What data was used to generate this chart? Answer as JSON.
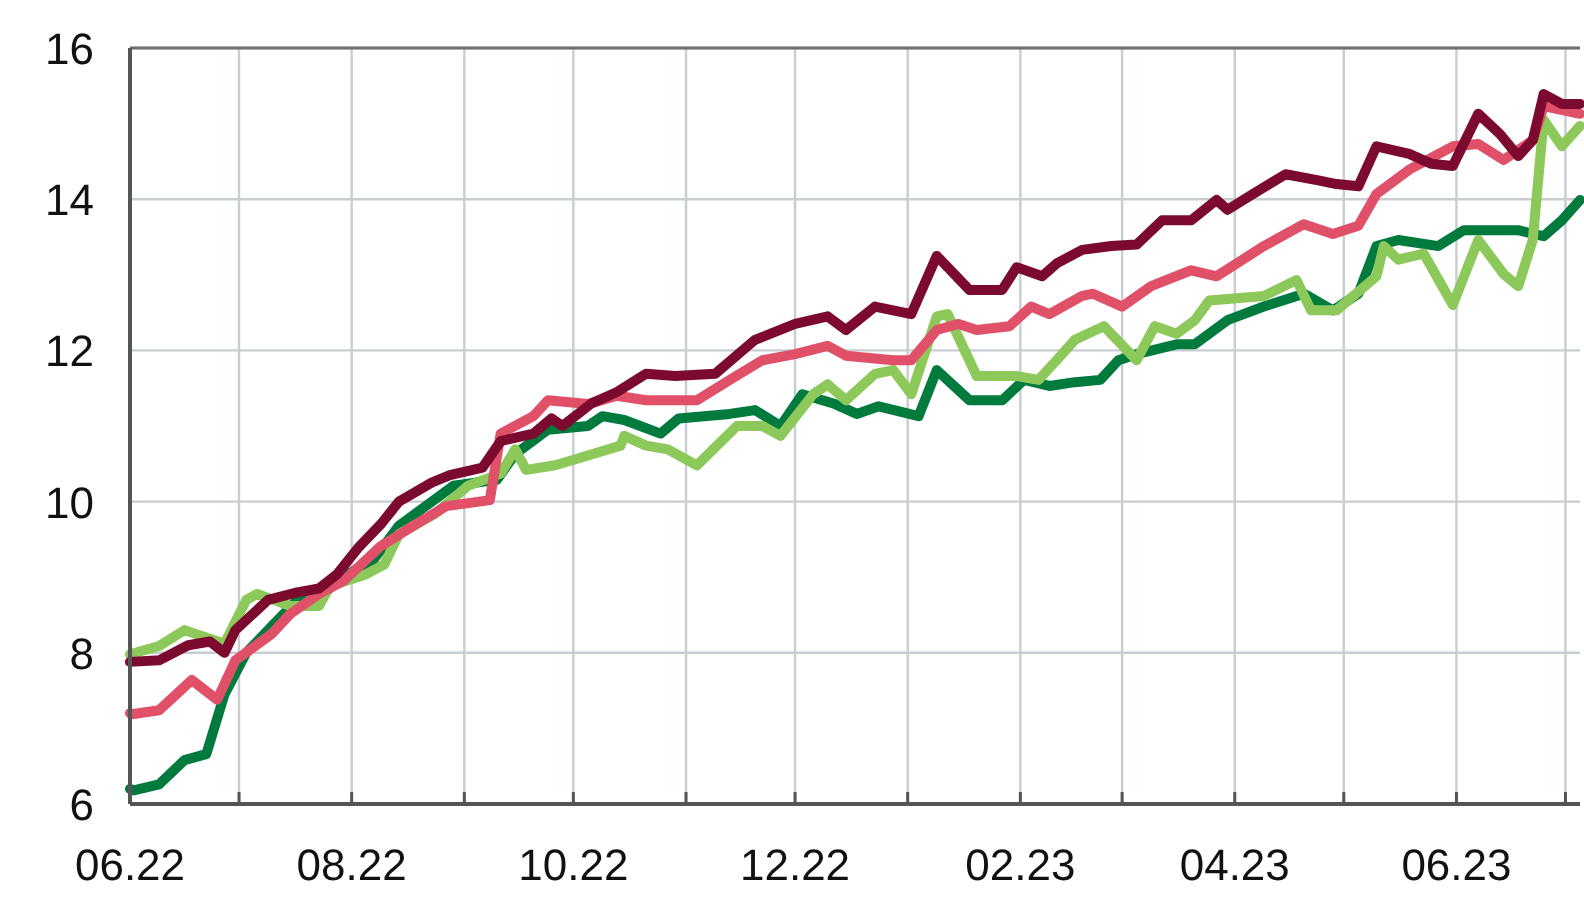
{
  "chart_data": {
    "type": "line",
    "xlim": [
      "2022-06-01",
      "2023-07-05"
    ],
    "ylim": [
      6,
      16
    ],
    "yticks": [
      6,
      8,
      10,
      12,
      14,
      16
    ],
    "xticks": [
      {
        "value": "2022-06",
        "label": "06.22"
      },
      {
        "value": "2022-07",
        "label": null
      },
      {
        "value": "2022-08",
        "label": "08.22"
      },
      {
        "value": "2022-09",
        "label": null
      },
      {
        "value": "2022-10",
        "label": "10.22"
      },
      {
        "value": "2022-11",
        "label": null
      },
      {
        "value": "2022-12",
        "label": "12.22"
      },
      {
        "value": "2023-01",
        "label": null
      },
      {
        "value": "2023-02",
        "label": "02.23"
      },
      {
        "value": "2023-03",
        "label": null
      },
      {
        "value": "2023-04",
        "label": "04.23"
      },
      {
        "value": "2023-05",
        "label": null
      },
      {
        "value": "2023-06",
        "label": "06.23"
      },
      {
        "value": "2023-07",
        "label": null
      }
    ],
    "grid": true,
    "line_style": "solid",
    "marker": "none",
    "series": [
      {
        "color": "#007a3d",
        "x": [
          "2022-06-01",
          "2022-06-02",
          "2022-06-09",
          "2022-06-16",
          "2022-06-22",
          "2022-06-27",
          "2022-07-03",
          "2022-07-10",
          "2022-07-17",
          "2022-07-23",
          "2022-07-28",
          "2022-08-07",
          "2022-08-14",
          "2022-08-29",
          "2022-09-10",
          "2022-09-15",
          "2022-09-24",
          "2022-10-05",
          "2022-10-09",
          "2022-10-15",
          "2022-10-25",
          "2022-10-30",
          "2022-11-13",
          "2022-11-20",
          "2022-11-27",
          "2022-12-03",
          "2022-12-12",
          "2022-12-18",
          "2022-12-24",
          "2023-01-04",
          "2023-01-09",
          "2023-01-18",
          "2023-01-27",
          "2023-02-02",
          "2023-02-09",
          "2023-02-16",
          "2023-02-23",
          "2023-02-28",
          "2023-03-05",
          "2023-03-16",
          "2023-03-21",
          "2023-03-30",
          "2023-04-09",
          "2023-04-20",
          "2023-04-28",
          "2023-05-05",
          "2023-05-10",
          "2023-05-16",
          "2023-05-27",
          "2023-06-03",
          "2023-06-18",
          "2023-06-25",
          "2023-06-30",
          "2023-07-05"
        ],
        "values": [
          6.2,
          6.18,
          6.26,
          6.58,
          6.66,
          7.45,
          8.0,
          8.35,
          8.7,
          8.7,
          8.96,
          9.23,
          9.68,
          10.21,
          10.29,
          10.63,
          10.95,
          11.0,
          11.13,
          11.08,
          10.9,
          11.1,
          11.16,
          11.21,
          11.0,
          11.42,
          11.29,
          11.16,
          11.26,
          11.13,
          11.74,
          11.34,
          11.34,
          11.61,
          11.53,
          11.58,
          11.61,
          11.87,
          11.95,
          12.08,
          12.08,
          12.4,
          12.58,
          12.75,
          12.53,
          12.75,
          13.38,
          13.46,
          13.38,
          13.59,
          13.59,
          13.51,
          13.72,
          13.99
        ]
      },
      {
        "color": "#8dc95a",
        "x": [
          "2022-06-01",
          "2022-06-09",
          "2022-06-16",
          "2022-06-24",
          "2022-06-27",
          "2022-07-03",
          "2022-07-06",
          "2022-07-15",
          "2022-07-23",
          "2022-07-26",
          "2022-08-05",
          "2022-08-10",
          "2022-08-14",
          "2022-08-24",
          "2022-09-02",
          "2022-09-11",
          "2022-09-15",
          "2022-09-18",
          "2022-09-26",
          "2022-10-05",
          "2022-10-14",
          "2022-10-15",
          "2022-10-21",
          "2022-10-27",
          "2022-11-04",
          "2022-11-15",
          "2022-11-22",
          "2022-11-27",
          "2022-12-06",
          "2022-12-10",
          "2022-12-15",
          "2022-12-23",
          "2022-12-28",
          "2023-01-02",
          "2023-01-09",
          "2023-01-12",
          "2023-01-20",
          "2023-01-31",
          "2023-02-06",
          "2023-02-11",
          "2023-02-16",
          "2023-02-24",
          "2023-03-05",
          "2023-03-10",
          "2023-03-16",
          "2023-03-21",
          "2023-03-25",
          "2023-04-09",
          "2023-04-18",
          "2023-04-22",
          "2023-04-29",
          "2023-05-10",
          "2023-05-12",
          "2023-05-16",
          "2023-05-23",
          "2023-05-31",
          "2023-06-07",
          "2023-06-14",
          "2023-06-18",
          "2023-06-22",
          "2023-06-25",
          "2023-06-30",
          "2023-07-05"
        ],
        "values": [
          7.98,
          8.09,
          8.3,
          8.17,
          8.12,
          8.7,
          8.78,
          8.62,
          8.62,
          8.88,
          9.04,
          9.17,
          9.57,
          9.84,
          10.21,
          10.37,
          10.69,
          10.42,
          10.48,
          10.61,
          10.74,
          10.87,
          10.74,
          10.69,
          10.48,
          11.0,
          11.0,
          10.87,
          11.42,
          11.55,
          11.34,
          11.69,
          11.74,
          11.42,
          12.45,
          12.48,
          11.66,
          11.66,
          11.61,
          11.87,
          12.14,
          12.32,
          11.87,
          12.32,
          12.22,
          12.4,
          12.66,
          12.72,
          12.93,
          12.53,
          12.53,
          12.98,
          13.38,
          13.2,
          13.28,
          12.6,
          13.46,
          13.01,
          12.85,
          13.46,
          15.05,
          14.7,
          14.97
        ]
      },
      {
        "color": "#e05068",
        "x": [
          "2022-06-01",
          "2022-06-02",
          "2022-06-09",
          "2022-06-18",
          "2022-06-25",
          "2022-06-30",
          "2022-07-10",
          "2022-07-15",
          "2022-07-23",
          "2022-07-30",
          "2022-08-09",
          "2022-08-18",
          "2022-08-27",
          "2022-09-08",
          "2022-09-11",
          "2022-09-20",
          "2022-09-24",
          "2022-10-05",
          "2022-10-13",
          "2022-10-21",
          "2022-11-04",
          "2022-11-13",
          "2022-11-22",
          "2022-12-01",
          "2022-12-10",
          "2022-12-15",
          "2022-12-28",
          "2023-01-02",
          "2023-01-09",
          "2023-01-15",
          "2023-01-20",
          "2023-01-29",
          "2023-02-04",
          "2023-02-09",
          "2023-02-18",
          "2023-02-21",
          "2023-03-01",
          "2023-03-09",
          "2023-03-20",
          "2023-03-27",
          "2023-04-09",
          "2023-04-20",
          "2023-04-28",
          "2023-05-05",
          "2023-05-10",
          "2023-05-19",
          "2023-05-31",
          "2023-06-07",
          "2023-06-14",
          "2023-06-22",
          "2023-06-25",
          "2023-07-05"
        ],
        "values": [
          7.2,
          7.19,
          7.24,
          7.64,
          7.38,
          7.9,
          8.25,
          8.51,
          8.78,
          8.96,
          9.41,
          9.68,
          9.94,
          10.02,
          10.9,
          11.13,
          11.34,
          11.29,
          11.4,
          11.34,
          11.34,
          11.61,
          11.87,
          11.95,
          12.06,
          11.93,
          11.87,
          11.87,
          12.27,
          12.35,
          12.27,
          12.32,
          12.58,
          12.48,
          12.72,
          12.75,
          12.58,
          12.85,
          13.06,
          12.98,
          13.38,
          13.67,
          13.54,
          13.65,
          14.07,
          14.39,
          14.7,
          14.73,
          14.52,
          14.78,
          15.23,
          15.13
        ]
      },
      {
        "color": "#7b0a2e",
        "x": [
          "2022-06-01",
          "2022-06-09",
          "2022-06-17",
          "2022-06-23",
          "2022-06-27",
          "2022-06-30",
          "2022-07-09",
          "2022-07-17",
          "2022-07-23",
          "2022-07-28",
          "2022-08-03",
          "2022-08-09",
          "2022-08-14",
          "2022-08-23",
          "2022-08-28",
          "2022-09-06",
          "2022-09-11",
          "2022-09-20",
          "2022-09-25",
          "2022-09-28",
          "2022-10-06",
          "2022-10-13",
          "2022-10-21",
          "2022-10-29",
          "2022-11-09",
          "2022-11-20",
          "2022-12-01",
          "2022-12-10",
          "2022-12-15",
          "2022-12-23",
          "2023-01-02",
          "2023-01-09",
          "2023-01-18",
          "2023-01-27",
          "2023-01-31",
          "2023-02-07",
          "2023-02-11",
          "2023-02-18",
          "2023-02-26",
          "2023-03-05",
          "2023-03-12",
          "2023-03-20",
          "2023-03-27",
          "2023-03-30",
          "2023-04-06",
          "2023-04-15",
          "2023-04-24",
          "2023-04-29",
          "2023-05-05",
          "2023-05-10",
          "2023-05-19",
          "2023-05-25",
          "2023-05-31",
          "2023-06-07",
          "2023-06-13",
          "2023-06-18",
          "2023-06-22",
          "2023-06-25",
          "2023-06-30",
          "2023-07-05"
        ],
        "values": [
          7.88,
          7.9,
          8.1,
          8.15,
          8.0,
          8.3,
          8.7,
          8.8,
          8.85,
          9.04,
          9.4,
          9.7,
          10.0,
          10.25,
          10.35,
          10.45,
          10.8,
          10.9,
          11.1,
          11.0,
          11.3,
          11.45,
          11.69,
          11.66,
          11.69,
          12.14,
          12.35,
          12.45,
          12.27,
          12.58,
          12.48,
          13.25,
          12.8,
          12.8,
          13.1,
          12.98,
          13.15,
          13.33,
          13.38,
          13.4,
          13.72,
          13.72,
          13.99,
          13.86,
          14.07,
          14.33,
          14.25,
          14.2,
          14.17,
          14.7,
          14.6,
          14.47,
          14.44,
          15.13,
          14.86,
          14.57,
          14.78,
          15.39,
          15.26,
          15.26
        ]
      }
    ]
  }
}
